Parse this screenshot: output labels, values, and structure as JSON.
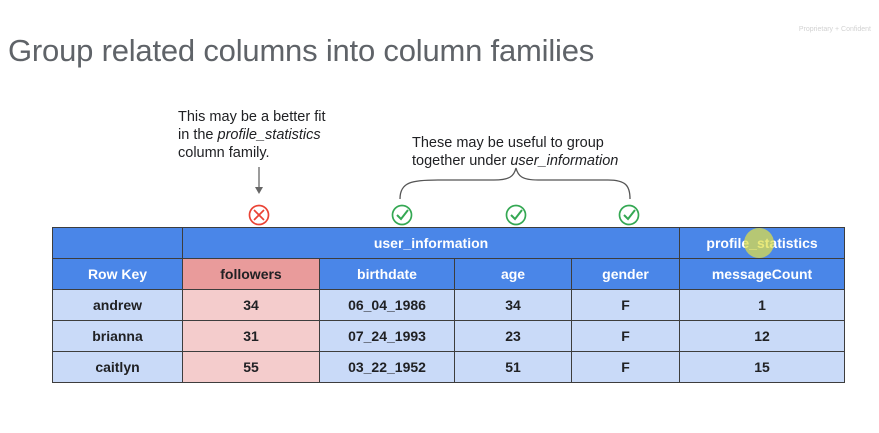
{
  "confidential": "Proprietary + Confident",
  "title": "Group related columns into column families",
  "note_followers": {
    "line1": "This may be a better fit",
    "line2_pre": "in the ",
    "line2_em": "profile_statistics",
    "line3": "column family."
  },
  "note_group": {
    "line1": "These may be useful to group",
    "line2_pre": "together under ",
    "line2_em": "user_information"
  },
  "family_headers": {
    "user_information": "user_information",
    "profile_statistics": "profile_statistics"
  },
  "columns": [
    "Row Key",
    "followers",
    "birthdate",
    "age",
    "gender",
    "messageCount"
  ],
  "rows": [
    [
      "andrew",
      "34",
      "06_04_1986",
      "34",
      "F",
      "1"
    ],
    [
      "brianna",
      "31",
      "07_24_1993",
      "23",
      "F",
      "12"
    ],
    [
      "caitlyn",
      "55",
      "03_22_1952",
      "51",
      "F",
      "15"
    ]
  ],
  "markers": {
    "followers": "cross-circle-icon",
    "birthdate": "check-circle-icon",
    "age": "check-circle-icon",
    "gender": "check-circle-icon"
  },
  "colors": {
    "header_blue": "#4a86e8",
    "cell_blue": "#c9daf8",
    "header_red": "#e99b9b",
    "cell_red": "#f4cccc",
    "check_green": "#34a853",
    "cross_red": "#ea4335"
  }
}
